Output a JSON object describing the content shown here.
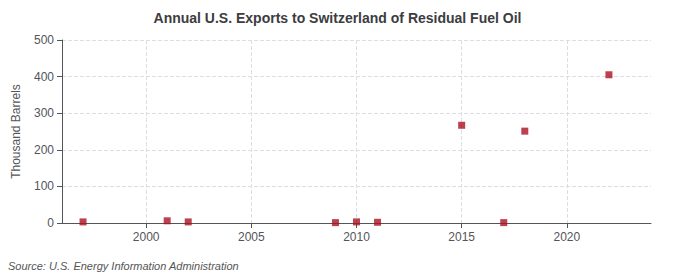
{
  "chart_data": {
    "type": "scatter",
    "title": "Annual U.S. Exports to Switzerland of Residual Fuel Oil",
    "ylabel": "Thousand Barrels",
    "annotations": [
      "Source: U.S. Energy Information Administration"
    ],
    "x": [
      1997,
      2001,
      2002,
      2009,
      2010,
      2011,
      2015,
      2017,
      2018,
      2022
    ],
    "values": [
      3,
      6,
      3,
      1,
      3,
      2,
      267,
      1,
      251,
      405
    ],
    "color": "#aa1122",
    "marker": "square",
    "xlim": [
      1996,
      2024
    ],
    "ylim": [
      0,
      500
    ],
    "xticks": [
      2000,
      2005,
      2010,
      2015,
      2020
    ],
    "yticks": [
      0,
      100,
      200,
      300,
      400,
      500
    ],
    "grid": true
  }
}
